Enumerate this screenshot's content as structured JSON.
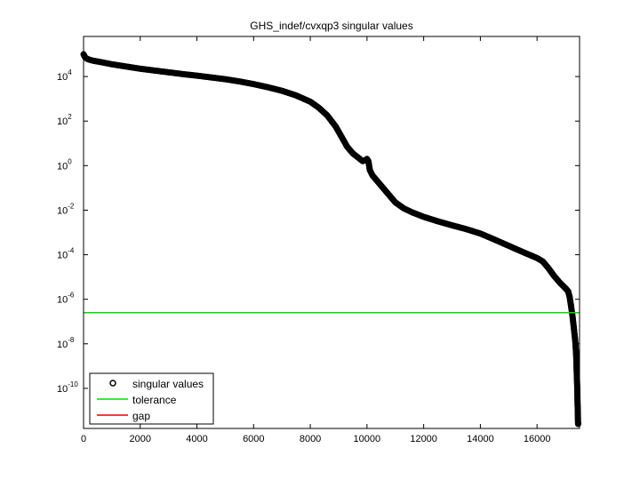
{
  "chart_data": {
    "type": "scatter",
    "title": "GHS_indef/cvxqp3 singular values",
    "xlabel": "",
    "ylabel": "",
    "xlim": [
      0,
      17500
    ],
    "ylog_exp_range": [
      -11.8,
      5.8
    ],
    "yscale": "log",
    "grid": false,
    "xticks": [
      0,
      2000,
      4000,
      6000,
      8000,
      10000,
      12000,
      14000,
      16000
    ],
    "xtick_labels": [
      "0",
      "2000",
      "4000",
      "6000",
      "8000",
      "10000",
      "12000",
      "14000",
      "16000"
    ],
    "yticks_exp": [
      4,
      2,
      0,
      -2,
      -4,
      -6,
      -8,
      -10
    ],
    "ytick_base": "10",
    "ytick_sups": [
      "4",
      "2",
      "0",
      "-2",
      "-4",
      "-6",
      "-8",
      "-10"
    ],
    "series": [
      {
        "name": "singular values",
        "marker": "circle",
        "color": "#000000",
        "points_log10": [
          [
            0,
            5.0
          ],
          [
            20,
            4.95
          ],
          [
            60,
            4.85
          ],
          [
            150,
            4.78
          ],
          [
            300,
            4.72
          ],
          [
            600,
            4.65
          ],
          [
            1000,
            4.55
          ],
          [
            1500,
            4.45
          ],
          [
            2000,
            4.35
          ],
          [
            2500,
            4.27
          ],
          [
            3000,
            4.19
          ],
          [
            3500,
            4.11
          ],
          [
            4000,
            4.04
          ],
          [
            4500,
            3.96
          ],
          [
            5000,
            3.88
          ],
          [
            5500,
            3.78
          ],
          [
            6000,
            3.66
          ],
          [
            6500,
            3.52
          ],
          [
            7000,
            3.36
          ],
          [
            7500,
            3.15
          ],
          [
            8000,
            2.87
          ],
          [
            8300,
            2.6
          ],
          [
            8600,
            2.25
          ],
          [
            8900,
            1.75
          ],
          [
            9100,
            1.3
          ],
          [
            9300,
            0.85
          ],
          [
            9500,
            0.55
          ],
          [
            9700,
            0.35
          ],
          [
            9850,
            0.2
          ],
          [
            9950,
            0.25
          ],
          [
            10000,
            0.3
          ],
          [
            10050,
            0.2
          ],
          [
            10100,
            -0.2
          ],
          [
            10200,
            -0.45
          ],
          [
            10400,
            -0.75
          ],
          [
            10600,
            -1.05
          ],
          [
            10800,
            -1.35
          ],
          [
            11000,
            -1.65
          ],
          [
            11300,
            -1.92
          ],
          [
            11600,
            -2.1
          ],
          [
            12000,
            -2.3
          ],
          [
            12500,
            -2.5
          ],
          [
            13000,
            -2.68
          ],
          [
            13500,
            -2.85
          ],
          [
            14000,
            -3.05
          ],
          [
            14500,
            -3.32
          ],
          [
            15000,
            -3.6
          ],
          [
            15500,
            -3.88
          ],
          [
            16000,
            -4.15
          ],
          [
            16200,
            -4.3
          ],
          [
            16400,
            -4.6
          ],
          [
            16600,
            -4.95
          ],
          [
            16800,
            -5.25
          ],
          [
            17000,
            -5.5
          ],
          [
            17100,
            -5.65
          ],
          [
            17150,
            -5.9
          ],
          [
            17200,
            -6.3
          ],
          [
            17250,
            -6.75
          ],
          [
            17300,
            -7.3
          ],
          [
            17350,
            -7.9
          ],
          [
            17380,
            -8.5
          ],
          [
            17400,
            -9.3
          ],
          [
            17420,
            -10.0
          ],
          [
            17430,
            -10.7
          ],
          [
            17440,
            -11.1
          ],
          [
            17445,
            -11.5
          ],
          [
            17450,
            -11.6
          ]
        ]
      },
      {
        "name": "tolerance",
        "type": "line",
        "color": "#00dd00",
        "y_log10": -6.6,
        "x_range": [
          0,
          17500
        ]
      },
      {
        "name": "gap",
        "type": "line",
        "color": "#dd0000"
      }
    ],
    "legend": {
      "placement": "bottom-left",
      "entries": [
        "singular values",
        "tolerance",
        "gap"
      ]
    }
  }
}
